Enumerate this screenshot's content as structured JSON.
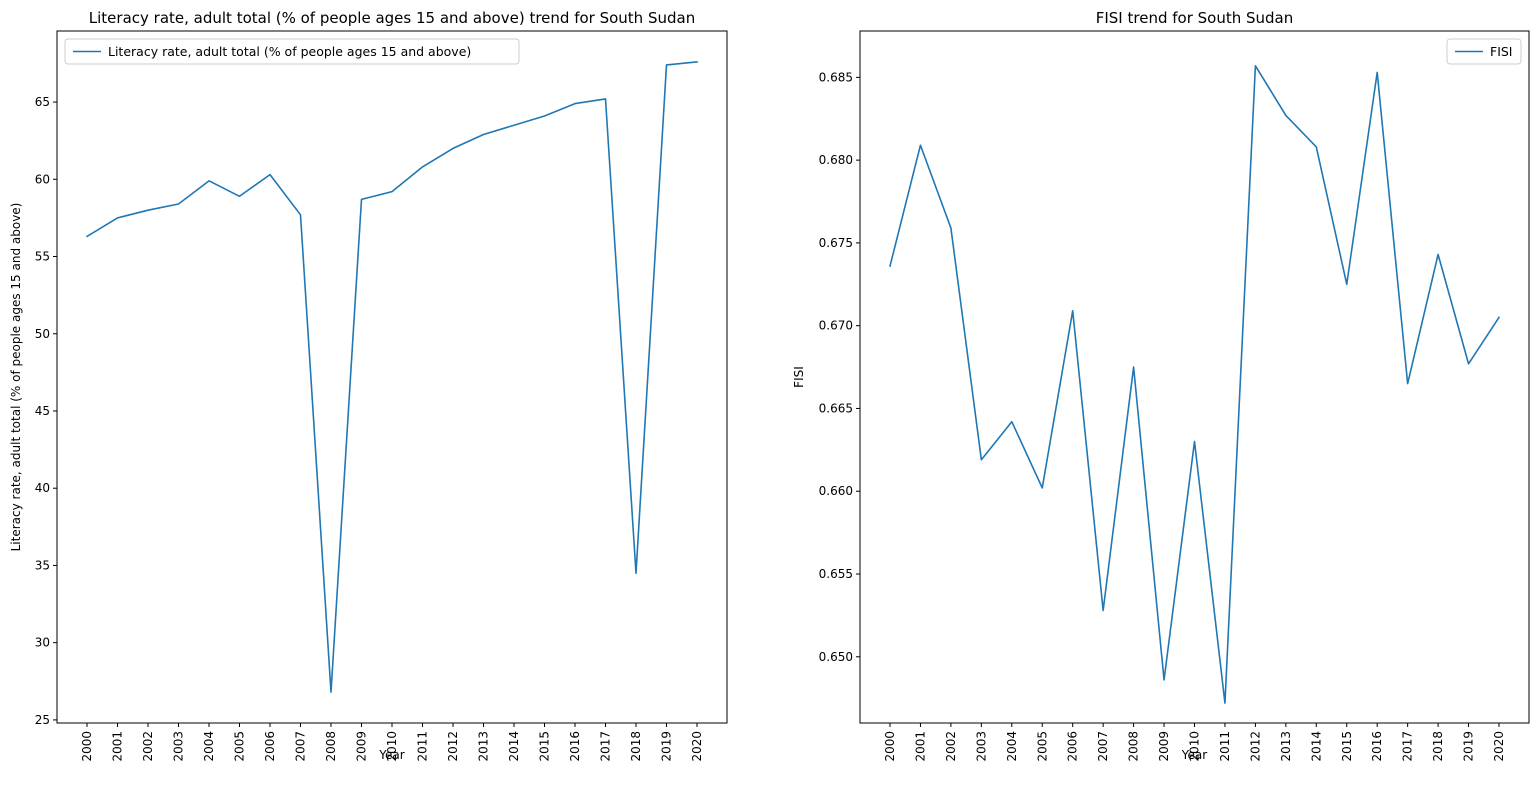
{
  "colors": {
    "series": "#1f77b4"
  },
  "chart_data": [
    {
      "type": "line",
      "title": "Literacy rate, adult total (% of people ages 15 and above) trend for South Sudan",
      "xlabel": "Year",
      "ylabel": "Literacy rate, adult total (% of people ages 15 and above)",
      "categories": [
        "2000",
        "2001",
        "2002",
        "2003",
        "2004",
        "2005",
        "2006",
        "2007",
        "2008",
        "2009",
        "2010",
        "2011",
        "2012",
        "2013",
        "2014",
        "2015",
        "2016",
        "2017",
        "2018",
        "2019",
        "2020"
      ],
      "yticks": [
        25,
        30,
        35,
        40,
        45,
        50,
        55,
        60,
        65
      ],
      "ytick_labels": [
        "25",
        "30",
        "35",
        "40",
        "45",
        "50",
        "55",
        "60",
        "65"
      ],
      "ylim": [
        24.8,
        69.6
      ],
      "legend_position": "upper left",
      "grid": false,
      "series": [
        {
          "name": "Literacy rate, adult total (% of people ages 15 and above)",
          "values": [
            56.3,
            57.5,
            58.0,
            58.4,
            59.9,
            58.9,
            60.3,
            57.7,
            26.8,
            58.7,
            59.2,
            60.8,
            62.0,
            62.9,
            63.5,
            64.1,
            64.9,
            65.2,
            34.5,
            67.4,
            67.6
          ]
        }
      ]
    },
    {
      "type": "line",
      "title": "FISI trend for South Sudan",
      "xlabel": "Year",
      "ylabel": "FISI",
      "categories": [
        "2000",
        "2001",
        "2002",
        "2003",
        "2004",
        "2005",
        "2006",
        "2007",
        "2008",
        "2009",
        "2010",
        "2011",
        "2012",
        "2013",
        "2014",
        "2015",
        "2016",
        "2017",
        "2018",
        "2019",
        "2020"
      ],
      "yticks": [
        0.65,
        0.655,
        0.66,
        0.665,
        0.67,
        0.675,
        0.68,
        0.685
      ],
      "ytick_labels": [
        "0.650",
        "0.655",
        "0.660",
        "0.665",
        "0.670",
        "0.675",
        "0.680",
        "0.685"
      ],
      "ylim": [
        0.646,
        0.6878
      ],
      "legend_position": "upper right",
      "grid": false,
      "series": [
        {
          "name": "FISI",
          "values": [
            0.6736,
            0.6809,
            0.6759,
            0.6619,
            0.6642,
            0.6602,
            0.6709,
            0.6528,
            0.6675,
            0.6486,
            0.663,
            0.6472,
            0.6857,
            0.6827,
            0.6808,
            0.6725,
            0.6853,
            0.6665,
            0.6743,
            0.6677,
            0.6705
          ]
        }
      ]
    }
  ]
}
